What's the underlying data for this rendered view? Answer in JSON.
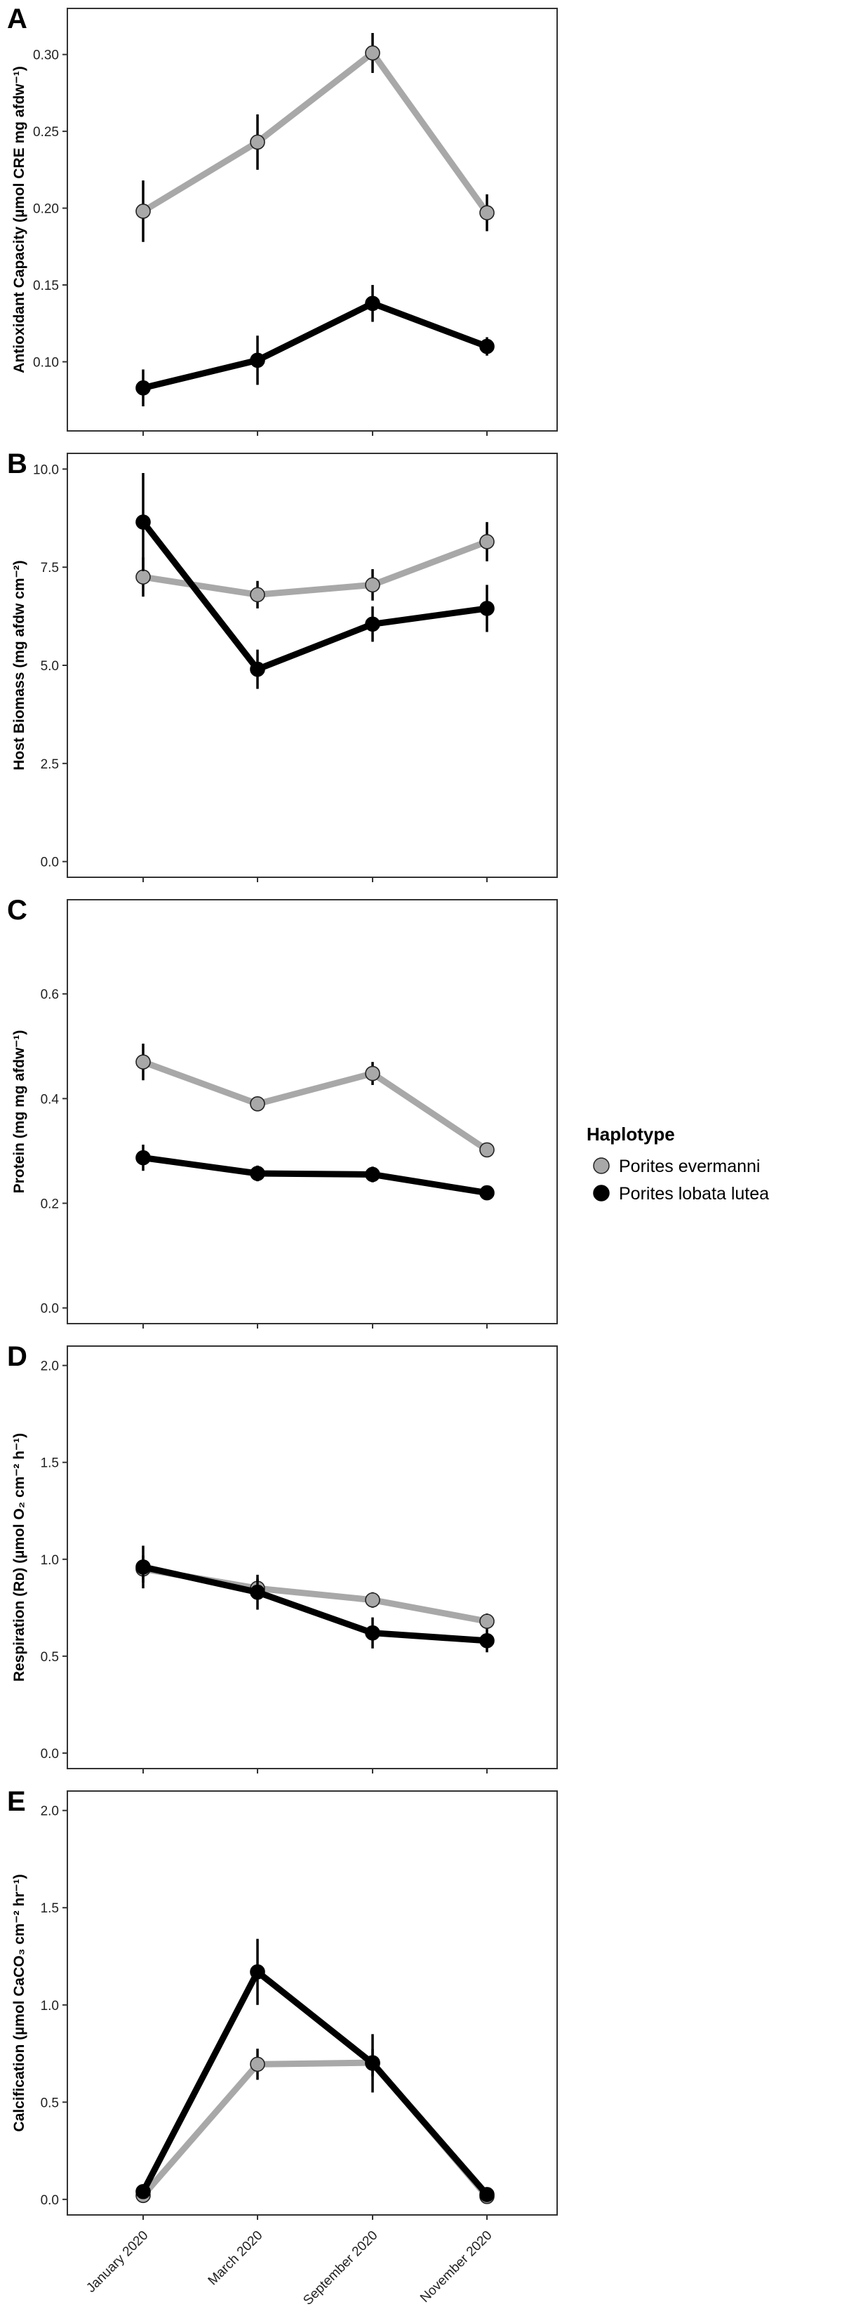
{
  "legend": {
    "title": "Haplotype",
    "items": [
      {
        "label": "Porites evermanni",
        "color": "#a8a8a8"
      },
      {
        "label": "Porites lobata lutea",
        "color": "#000000"
      }
    ]
  },
  "x_categories": [
    "January 2020",
    "March 2020",
    "September 2020",
    "November 2020"
  ],
  "chart_data": [
    {
      "type": "line",
      "letter": "A",
      "ylabel": "Antioxidant Capacity (µmol CRE mg afdw⁻¹)",
      "ylim": [
        0.055,
        0.33
      ],
      "yticks": [
        "0.10",
        "0.15",
        "0.20",
        "0.25",
        "0.30"
      ],
      "categories": [
        "January 2020",
        "March 2020",
        "September 2020",
        "November 2020"
      ],
      "series": [
        {
          "name": "Porites evermanni",
          "values": [
            0.198,
            0.243,
            0.301,
            0.197
          ],
          "errors": [
            0.02,
            0.018,
            0.013,
            0.012
          ]
        },
        {
          "name": "Porites lobata lutea",
          "values": [
            0.083,
            0.101,
            0.138,
            0.11
          ],
          "errors": [
            0.012,
            0.016,
            0.012,
            0.006
          ]
        }
      ]
    },
    {
      "type": "line",
      "letter": "B",
      "ylabel": "Host Biomass (mg afdw cm⁻²)",
      "ylim": [
        -0.4,
        10.4
      ],
      "yticks": [
        "0.0",
        "2.5",
        "5.0",
        "7.5",
        "10.0"
      ],
      "categories": [
        "January 2020",
        "March 2020",
        "September 2020",
        "November 2020"
      ],
      "series": [
        {
          "name": "Porites evermanni",
          "values": [
            7.25,
            6.8,
            7.05,
            8.15
          ],
          "errors": [
            0.5,
            0.35,
            0.4,
            0.5
          ]
        },
        {
          "name": "Porites lobata lutea",
          "values": [
            8.65,
            4.9,
            6.05,
            6.45
          ],
          "errors": [
            1.25,
            0.5,
            0.45,
            0.6
          ]
        }
      ]
    },
    {
      "type": "line",
      "letter": "C",
      "ylabel": "Protein (mg mg afdw⁻¹)",
      "ylim": [
        -0.03,
        0.78
      ],
      "yticks": [
        "0.0",
        "0.2",
        "0.4",
        "0.6"
      ],
      "categories": [
        "January 2020",
        "March 2020",
        "September 2020",
        "November 2020"
      ],
      "series": [
        {
          "name": "Porites evermanni",
          "values": [
            0.47,
            0.39,
            0.448,
            0.302
          ],
          "errors": [
            0.035,
            0.012,
            0.022,
            0.012
          ]
        },
        {
          "name": "Porites lobata lutea",
          "values": [
            0.287,
            0.257,
            0.255,
            0.22
          ],
          "errors": [
            0.025,
            0.015,
            0.015,
            0.008
          ]
        }
      ]
    },
    {
      "type": "line",
      "letter": "D",
      "ylabel": "Respiration (Rᴅ) (µmol O₂ cm⁻² h⁻¹)",
      "ylim": [
        -0.08,
        2.1
      ],
      "yticks": [
        "0.0",
        "0.5",
        "1.0",
        "1.5",
        "2.0"
      ],
      "categories": [
        "January 2020",
        "March 2020",
        "September 2020",
        "November 2020"
      ],
      "series": [
        {
          "name": "Porites evermanni",
          "values": [
            0.95,
            0.85,
            0.79,
            0.68
          ],
          "errors": [
            0.07,
            0.05,
            0.04,
            0.04
          ]
        },
        {
          "name": "Porites lobata lutea",
          "values": [
            0.96,
            0.83,
            0.62,
            0.58
          ],
          "errors": [
            0.11,
            0.09,
            0.08,
            0.06
          ]
        }
      ]
    },
    {
      "type": "line",
      "letter": "E",
      "ylabel": "Calcification (µmol CaCO₃ cm⁻² hr⁻¹)",
      "ylim": [
        -0.08,
        2.1
      ],
      "yticks": [
        "0.0",
        "0.5",
        "1.0",
        "1.5",
        "2.0"
      ],
      "categories": [
        "January 2020",
        "March 2020",
        "September 2020",
        "November 2020"
      ],
      "series": [
        {
          "name": "Porites evermanni",
          "values": [
            0.02,
            0.695,
            0.703,
            0.015
          ],
          "errors": [
            0.01,
            0.08,
            0.07,
            0.01
          ]
        },
        {
          "name": "Porites lobata lutea",
          "values": [
            0.04,
            1.17,
            0.7,
            0.025
          ],
          "errors": [
            0.01,
            0.17,
            0.15,
            0.01
          ]
        }
      ]
    }
  ]
}
